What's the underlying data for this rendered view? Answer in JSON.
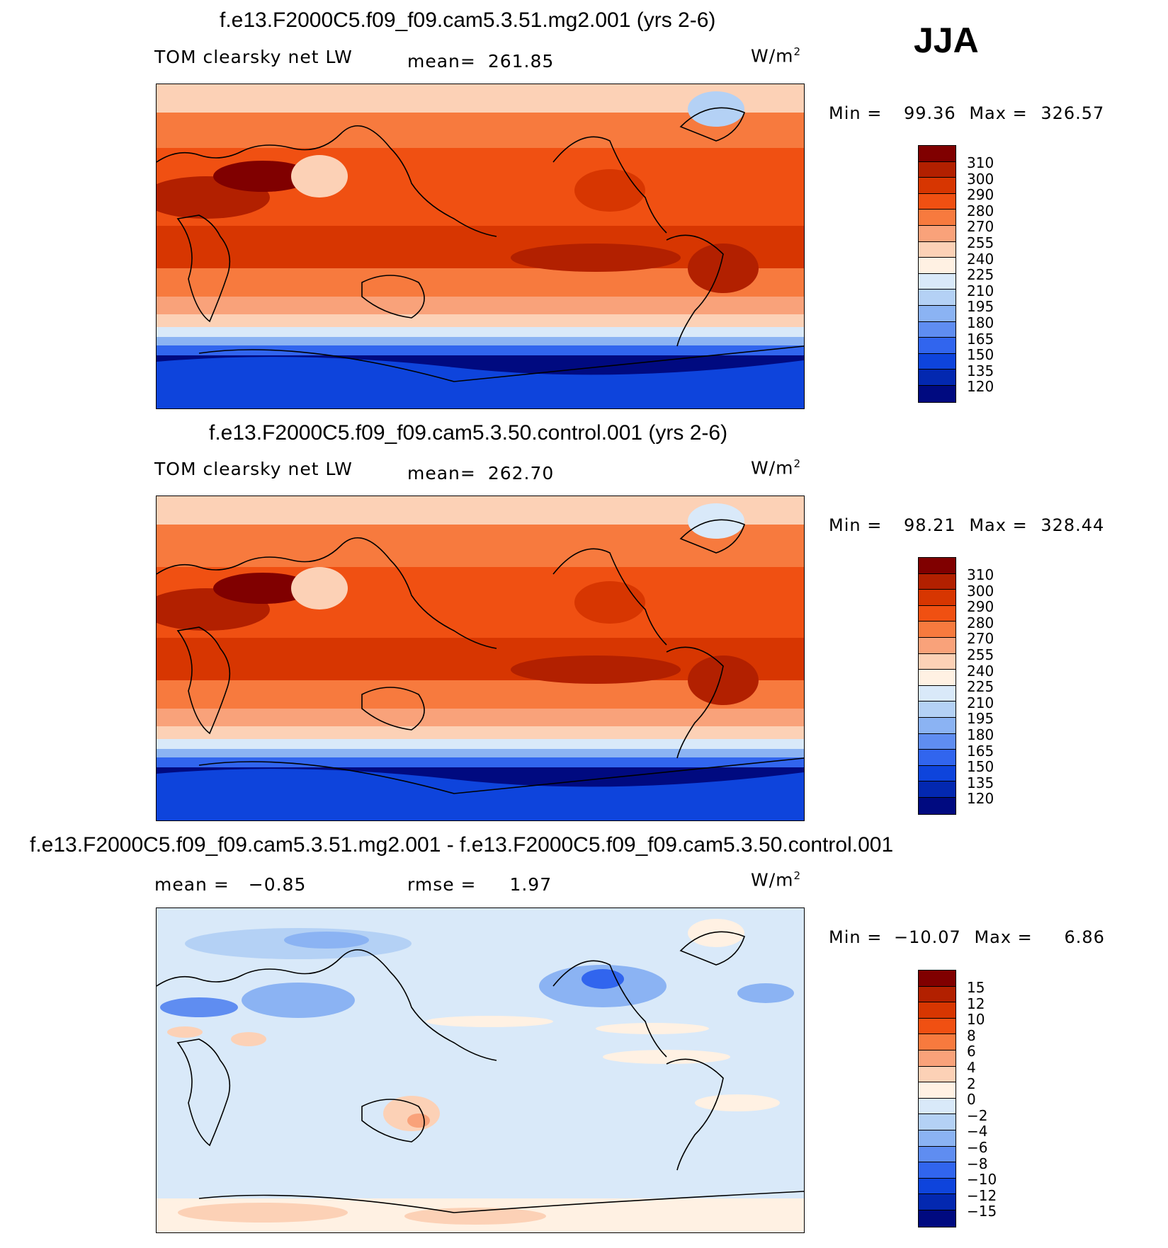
{
  "season": "JJA",
  "chart_data": [
    {
      "type": "heatmap",
      "title": "f.e13.F2000C5.f09_f09.cam5.3.51.mg2.001 (yrs 2-6)",
      "variable": "TOM clearsky net LW",
      "stat_label": "mean=",
      "stat_value": "261.85",
      "units_base": "W/m",
      "units_exp": "2",
      "min_label": "Min =",
      "min_value": "99.36",
      "max_label": "Max =",
      "max_value": "326.57",
      "colorbar_labels": [
        "310",
        "300",
        "290",
        "280",
        "270",
        "255",
        "240",
        "225",
        "210",
        "195",
        "180",
        "165",
        "150",
        "135",
        "120"
      ],
      "colorbar_colors": [
        "#800000",
        "#b22000",
        "#d73601",
        "#f05012",
        "#f77a3e",
        "#f9a27a",
        "#fcd1b6",
        "#fff1e3",
        "#d9e9f9",
        "#b4d1f5",
        "#8bb3f3",
        "#5f8df1",
        "#3165ee",
        "#0e44dc",
        "#0328b0",
        "#000a80"
      ]
    },
    {
      "type": "heatmap",
      "title": "f.e13.F2000C5.f09_f09.cam5.3.50.control.001 (yrs 2-6)",
      "variable": "TOM clearsky net LW",
      "stat_label": "mean=",
      "stat_value": "262.70",
      "units_base": "W/m",
      "units_exp": "2",
      "min_label": "Min =",
      "min_value": "98.21",
      "max_label": "Max =",
      "max_value": "328.44",
      "colorbar_labels": [
        "310",
        "300",
        "290",
        "280",
        "270",
        "255",
        "240",
        "225",
        "210",
        "195",
        "180",
        "165",
        "150",
        "135",
        "120"
      ],
      "colorbar_colors": [
        "#800000",
        "#b22000",
        "#d73601",
        "#f05012",
        "#f77a3e",
        "#f9a27a",
        "#fcd1b6",
        "#fff1e3",
        "#d9e9f9",
        "#b4d1f5",
        "#8bb3f3",
        "#5f8df1",
        "#3165ee",
        "#0e44dc",
        "#0328b0",
        "#000a80"
      ]
    },
    {
      "type": "heatmap",
      "title": "f.e13.F2000C5.f09_f09.cam5.3.51.mg2.001 - f.e13.F2000C5.f09_f09.cam5.3.50.control.001",
      "mean_label": "mean =",
      "mean_value": "−0.85",
      "rmse_label": "rmse =",
      "rmse_value": "1.97",
      "units_base": "W/m",
      "units_exp": "2",
      "min_label": "Min =",
      "min_value": "−10.07",
      "max_label": "Max =",
      "max_value": "6.86",
      "colorbar_labels": [
        "15",
        "12",
        "10",
        "8",
        "6",
        "4",
        "2",
        "0",
        "−2",
        "−4",
        "−6",
        "−8",
        "−10",
        "−12",
        "−15"
      ],
      "colorbar_colors": [
        "#800000",
        "#b22000",
        "#d73601",
        "#f05012",
        "#f77a3e",
        "#f9a27a",
        "#fcd1b6",
        "#fff1e3",
        "#d9e9f9",
        "#b4d1f5",
        "#8bb3f3",
        "#5f8df1",
        "#3165ee",
        "#0e44dc",
        "#0328b0",
        "#000a80"
      ]
    }
  ]
}
